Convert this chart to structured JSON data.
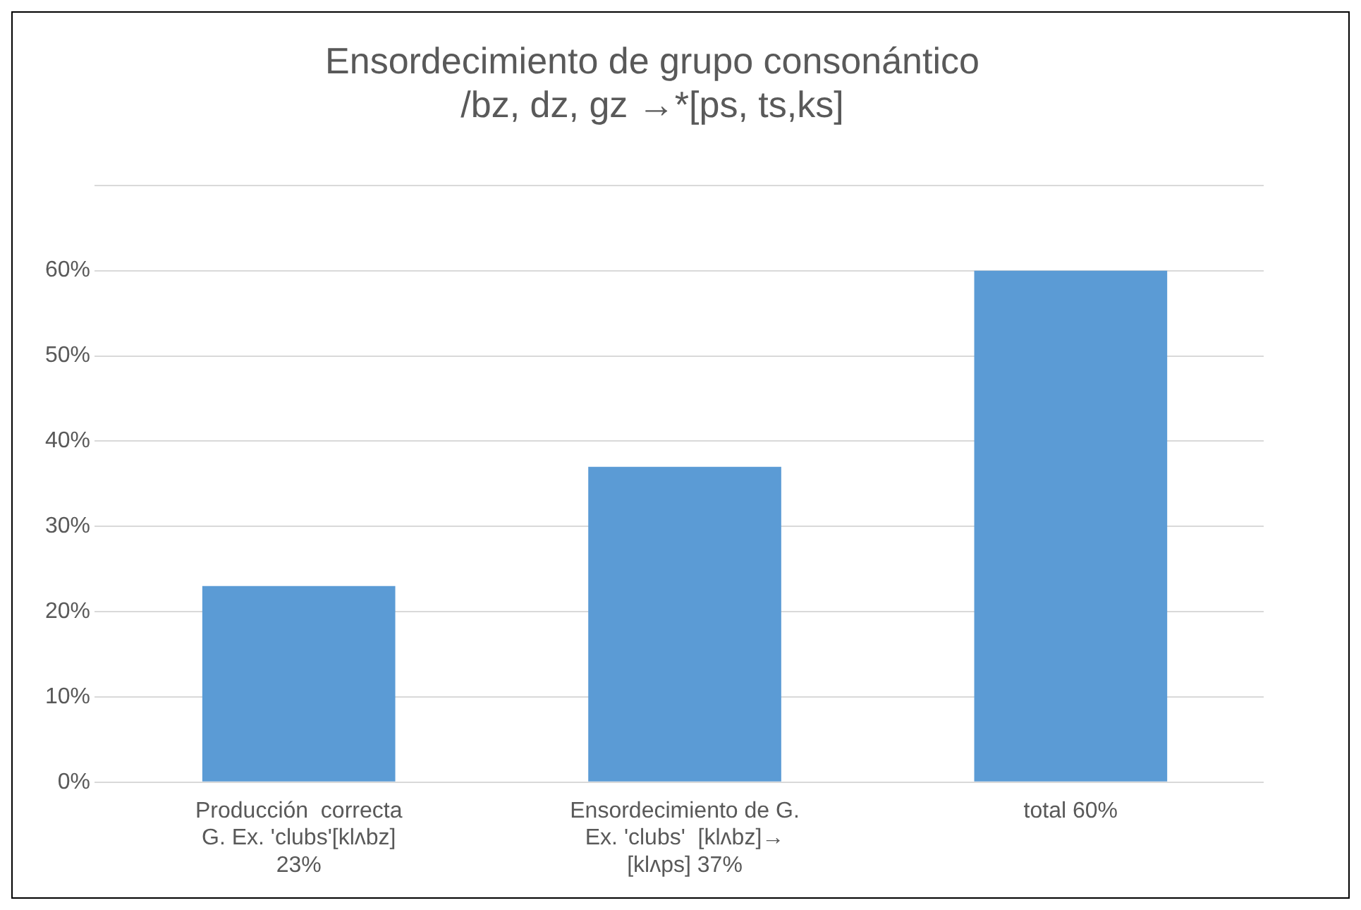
{
  "chart_data": {
    "type": "bar",
    "title": "Ensordecimiento de grupo consonántico\n/bz, dz, gz →*[ps, ts,ks]",
    "categories": [
      "Producción  correcta\nG. Ex. 'clubs'[klʌbz]\n23%",
      "Ensordecimiento de G.\nEx. 'clubs'  [klʌbz]→\n[klʌps] 37%",
      "total 60%"
    ],
    "values": [
      23,
      37,
      60
    ],
    "color": "#5b9bd5",
    "ylim": [
      0,
      70
    ],
    "yticks": [
      {
        "value": 0,
        "label": "0%"
      },
      {
        "value": 10,
        "label": "10%"
      },
      {
        "value": 20,
        "label": "20%"
      },
      {
        "value": 30,
        "label": "30%"
      },
      {
        "value": 40,
        "label": "40%"
      },
      {
        "value": 50,
        "label": "50%"
      },
      {
        "value": 60,
        "label": "60%"
      },
      {
        "value": 70,
        "label": null
      }
    ],
    "grid": "y",
    "legend": false
  }
}
